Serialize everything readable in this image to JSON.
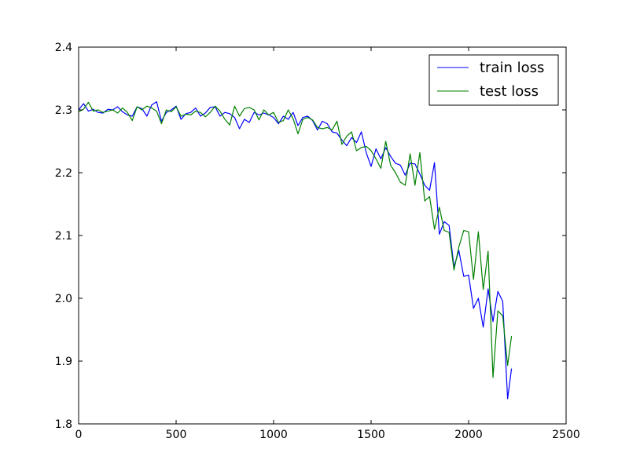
{
  "chart_data": {
    "type": "line",
    "title": "",
    "xlabel": "",
    "ylabel": "",
    "xlim": [
      0,
      2500
    ],
    "ylim": [
      1.8,
      2.4
    ],
    "xticks": [
      "0",
      "500",
      "1000",
      "1500",
      "2000",
      "2500"
    ],
    "yticks": [
      "1.8",
      "1.9",
      "2.0",
      "2.1",
      "2.2",
      "2.3",
      "2.4"
    ],
    "grid": false,
    "legend_position": "top-right",
    "series": [
      {
        "name": "train loss",
        "color": "#0000ff",
        "x": [
          0,
          25,
          50,
          75,
          100,
          125,
          150,
          175,
          200,
          225,
          250,
          275,
          300,
          325,
          350,
          375,
          400,
          425,
          450,
          475,
          500,
          525,
          550,
          575,
          600,
          625,
          650,
          675,
          700,
          725,
          750,
          775,
          800,
          825,
          850,
          875,
          900,
          925,
          950,
          975,
          1000,
          1025,
          1050,
          1075,
          1100,
          1125,
          1150,
          1175,
          1200,
          1225,
          1250,
          1275,
          1300,
          1325,
          1350,
          1375,
          1400,
          1425,
          1450,
          1475,
          1500,
          1525,
          1550,
          1575,
          1600,
          1625,
          1650,
          1675,
          1700,
          1725,
          1750,
          1775,
          1800,
          1825,
          1850,
          1875,
          1900,
          1925,
          1950,
          1975,
          2000,
          2025,
          2050,
          2075,
          2100,
          2125,
          2150,
          2175,
          2200,
          2220
        ],
        "y": [
          2.3,
          2.31,
          2.298,
          2.301,
          2.296,
          2.295,
          2.301,
          2.3,
          2.305,
          2.297,
          2.292,
          2.29,
          2.305,
          2.302,
          2.29,
          2.308,
          2.313,
          2.282,
          2.296,
          2.3,
          2.306,
          2.285,
          2.294,
          2.296,
          2.303,
          2.29,
          2.295,
          2.304,
          2.305,
          2.29,
          2.296,
          2.294,
          2.288,
          2.27,
          2.285,
          2.28,
          2.296,
          2.292,
          2.295,
          2.292,
          2.288,
          2.278,
          2.29,
          2.285,
          2.296,
          2.275,
          2.288,
          2.29,
          2.283,
          2.268,
          2.282,
          2.278,
          2.265,
          2.263,
          2.252,
          2.243,
          2.256,
          2.248,
          2.265,
          2.232,
          2.21,
          2.238,
          2.222,
          2.24,
          2.226,
          2.215,
          2.212,
          2.196,
          2.215,
          2.214,
          2.198,
          2.18,
          2.172,
          2.216,
          2.102,
          2.122,
          2.116,
          2.05,
          2.076,
          2.035,
          2.037,
          1.984,
          2.0,
          1.954,
          2.015,
          1.963,
          2.011,
          1.995,
          1.84,
          1.888
        ]
      },
      {
        "name": "test loss",
        "color": "#008000",
        "x": [
          0,
          25,
          50,
          75,
          100,
          125,
          150,
          175,
          200,
          225,
          250,
          275,
          300,
          325,
          350,
          375,
          400,
          425,
          450,
          475,
          500,
          525,
          550,
          575,
          600,
          625,
          650,
          675,
          700,
          725,
          750,
          775,
          800,
          825,
          850,
          875,
          900,
          925,
          950,
          975,
          1000,
          1025,
          1050,
          1075,
          1100,
          1125,
          1150,
          1175,
          1200,
          1225,
          1250,
          1275,
          1300,
          1325,
          1350,
          1375,
          1400,
          1425,
          1450,
          1475,
          1500,
          1525,
          1550,
          1575,
          1600,
          1625,
          1650,
          1675,
          1700,
          1725,
          1750,
          1775,
          1800,
          1825,
          1850,
          1875,
          1900,
          1925,
          1950,
          1975,
          2000,
          2025,
          2050,
          2075,
          2100,
          2125,
          2150,
          2175,
          2200,
          2220
        ],
        "y": [
          2.297,
          2.301,
          2.312,
          2.298,
          2.3,
          2.296,
          2.298,
          2.3,
          2.295,
          2.303,
          2.296,
          2.283,
          2.305,
          2.3,
          2.306,
          2.303,
          2.298,
          2.278,
          2.3,
          2.297,
          2.305,
          2.29,
          2.293,
          2.292,
          2.298,
          2.296,
          2.289,
          2.296,
          2.306,
          2.298,
          2.285,
          2.276,
          2.306,
          2.29,
          2.302,
          2.304,
          2.3,
          2.284,
          2.3,
          2.292,
          2.296,
          2.28,
          2.283,
          2.3,
          2.286,
          2.262,
          2.285,
          2.288,
          2.284,
          2.272,
          2.27,
          2.272,
          2.268,
          2.282,
          2.245,
          2.258,
          2.265,
          2.235,
          2.24,
          2.242,
          2.235,
          2.222,
          2.207,
          2.25,
          2.212,
          2.2,
          2.185,
          2.18,
          2.23,
          2.18,
          2.232,
          2.155,
          2.162,
          2.11,
          2.145,
          2.108,
          2.105,
          2.045,
          2.082,
          2.108,
          2.106,
          2.03,
          2.106,
          2.014,
          2.075,
          1.874,
          1.98,
          1.972,
          1.893,
          1.94
        ]
      }
    ]
  }
}
